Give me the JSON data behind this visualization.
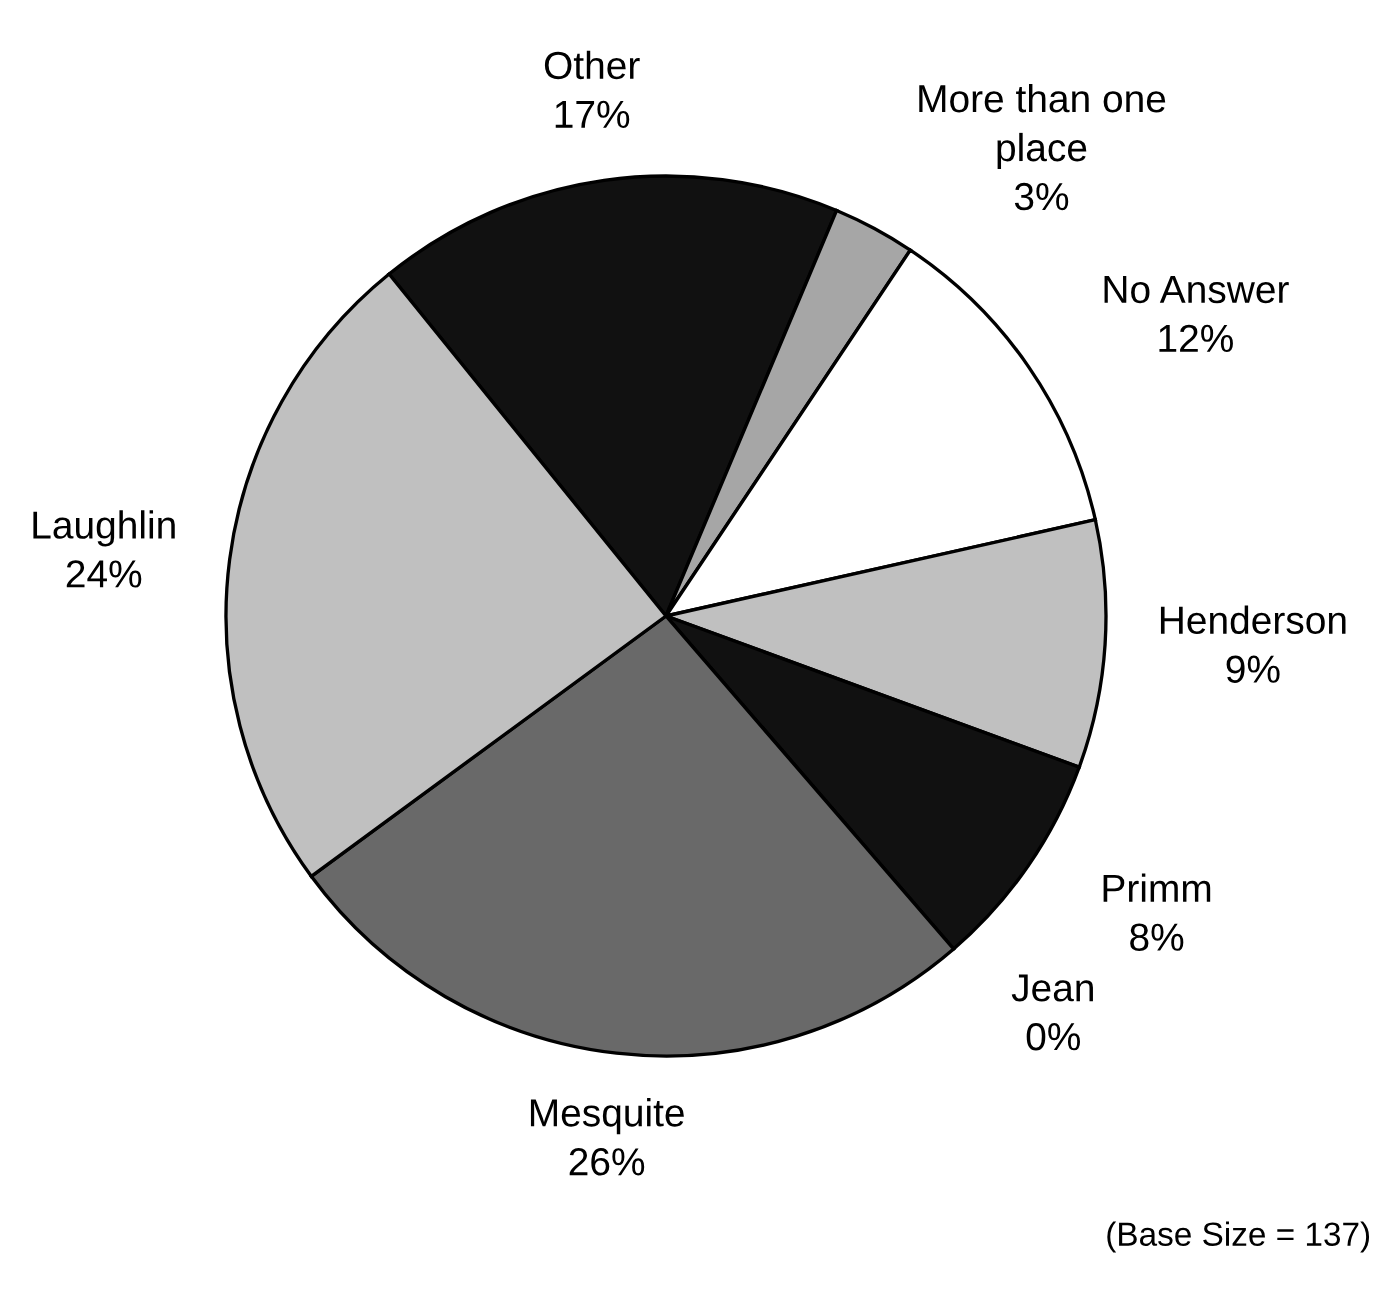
{
  "chart_data": {
    "type": "pie",
    "categories": [
      "Other",
      "More than one\nplace",
      "No Answer",
      "Henderson",
      "Primm",
      "Jean",
      "Mesquite",
      "Laughlin"
    ],
    "values": [
      17,
      3,
      12,
      9,
      8,
      0,
      26,
      24
    ],
    "value_labels": [
      "17%",
      "3%",
      "12%",
      "9%",
      "8%",
      "0%",
      "26%",
      "24%"
    ],
    "colors": [
      "#111111",
      "#a6a6a6",
      "#ffffff",
      "#c0c0c0",
      "#111111",
      "#111111",
      "#696969",
      "#c0c0c0"
    ],
    "legend": false,
    "annotations": [
      "(Base Size = 137)"
    ]
  }
}
